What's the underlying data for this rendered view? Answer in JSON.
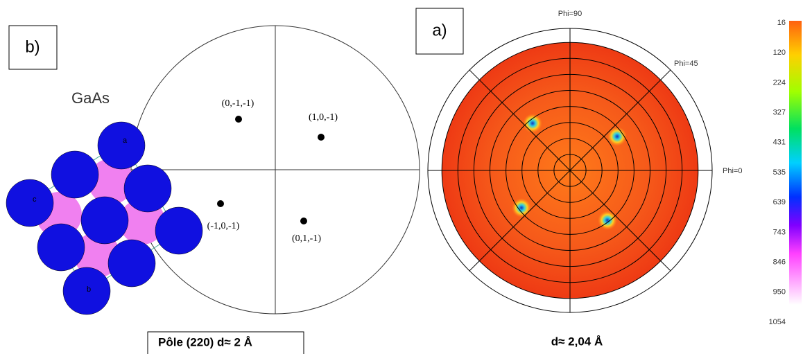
{
  "left": {
    "label": "b)",
    "material": "GaAs",
    "atom_labels": [
      "a",
      "c",
      "b"
    ],
    "poles": [
      "(0,-1,-1)",
      "(1,0,-1)",
      "(-1,0,-1)",
      "(0,1,-1)"
    ],
    "caption": "Pôle (220) d≈ 2 Å"
  },
  "right": {
    "label": "a)",
    "phi_labels": [
      "Phi=90",
      "Phi=45",
      "Phi=0"
    ],
    "caption": "d≈ 2,04 Å",
    "colorbar": [
      16,
      120,
      224,
      327,
      431,
      535,
      639,
      743,
      846,
      950,
      1054
    ]
  }
}
